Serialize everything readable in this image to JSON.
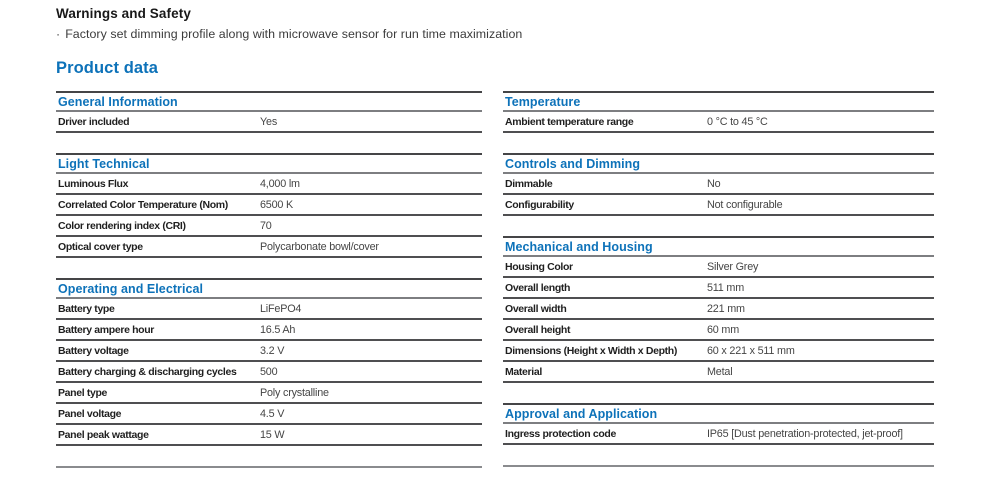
{
  "header": {
    "warnings_title": "Warnings and Safety",
    "bullet_glyph": "·",
    "warnings_bullet": "Factory set dimming profile along with microwave sensor for run time maximization",
    "product_data_title": "Product data"
  },
  "colors": {
    "accent_blue": "#0d72b9",
    "heading_dark": "#181818",
    "row_border": "#4f4f51"
  },
  "product_data": {
    "left_column": [
      {
        "title": "General Information",
        "rows": [
          {
            "label": "Driver included",
            "value": "Yes"
          }
        ]
      },
      {
        "title": "Light Technical",
        "rows": [
          {
            "label": "Luminous Flux",
            "value": "4,000 lm"
          },
          {
            "label": "Correlated Color Temperature (Nom)",
            "value": "6500 K"
          },
          {
            "label": "Color rendering index (CRI)",
            "value": "70"
          },
          {
            "label": "Optical cover type",
            "value": "Polycarbonate bowl/cover"
          }
        ]
      },
      {
        "title": "Operating and Electrical",
        "rows": [
          {
            "label": "Battery type",
            "value": "LiFePO4"
          },
          {
            "label": "Battery ampere hour",
            "value": "16.5 Ah"
          },
          {
            "label": "Battery voltage",
            "value": "3.2 V"
          },
          {
            "label": "Battery charging & discharging cycles",
            "value": "500"
          },
          {
            "label": "Panel type",
            "value": "Poly crystalline"
          },
          {
            "label": "Panel voltage",
            "value": "4.5 V"
          },
          {
            "label": "Panel peak wattage",
            "value": "15 W"
          }
        ]
      }
    ],
    "right_column": [
      {
        "title": "Temperature",
        "rows": [
          {
            "label": "Ambient temperature range",
            "value": "0 °C to 45 °C"
          }
        ]
      },
      {
        "title": "Controls and Dimming",
        "rows": [
          {
            "label": "Dimmable",
            "value": "No"
          },
          {
            "label": "Configurability",
            "value": "Not configurable"
          }
        ]
      },
      {
        "title": "Mechanical and Housing",
        "rows": [
          {
            "label": "Housing Color",
            "value": "Silver Grey"
          },
          {
            "label": "Overall length",
            "value": "511 mm"
          },
          {
            "label": "Overall width",
            "value": "221 mm"
          },
          {
            "label": "Overall height",
            "value": "60 mm"
          },
          {
            "label": "Dimensions (Height x Width x Depth)",
            "value": "60 x 221 x 511 mm"
          },
          {
            "label": "Material",
            "value": "Metal"
          }
        ]
      },
      {
        "title": "Approval and Application",
        "rows": [
          {
            "label": "Ingress protection code",
            "value": "IP65 [Dust penetration-protected, jet-proof]"
          }
        ]
      }
    ]
  }
}
